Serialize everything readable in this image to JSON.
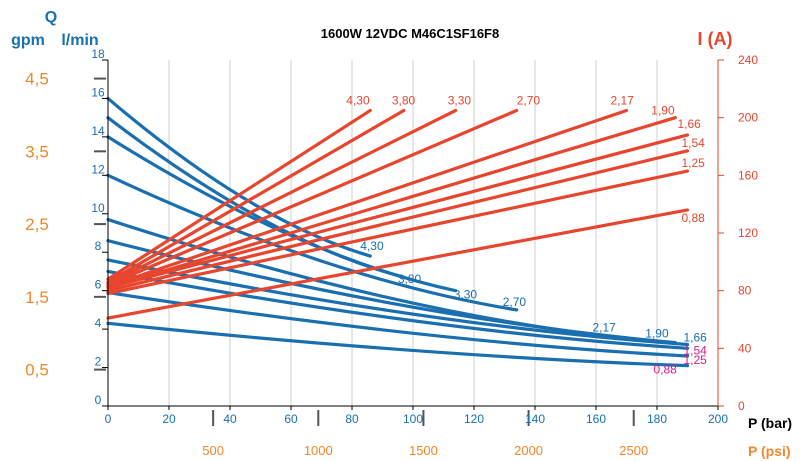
{
  "chart_data": {
    "type": "line",
    "title": "1600W 12VDC M46C1SF16F8",
    "colors": {
      "flow": "#1a6fb0",
      "current": "#e8452e",
      "psi": "#f0872b",
      "grid": "#cfcfcf",
      "axis": "#000000",
      "magenta": "#d81b8c"
    },
    "x_axis": {
      "label": "P (bar)",
      "range": [
        0,
        200
      ],
      "ticks": [
        "0",
        "20",
        "40",
        "60",
        "80",
        "100",
        "120",
        "140",
        "160",
        "180",
        "200"
      ]
    },
    "x2_axis": {
      "label": "P (psi)",
      "ticks": [
        "500",
        "1000",
        "1500",
        "2000",
        "2500"
      ],
      "values": [
        500,
        1000,
        1500,
        2000,
        2500
      ]
    },
    "y_lmin_axis": {
      "label": "l/min",
      "range": [
        0,
        18
      ],
      "ticks": [
        "0",
        "2",
        "4",
        "6",
        "8",
        "10",
        "12",
        "14",
        "16",
        "18"
      ]
    },
    "y_gpm_axis": {
      "label": "gpm",
      "q_label": "Q",
      "ticks": [
        "0,5",
        "1,5",
        "2,5",
        "3,5",
        "4,5"
      ],
      "values": [
        0.5,
        1.5,
        2.5,
        3.5,
        4.5
      ]
    },
    "y_current_axis": {
      "label": "I (A)",
      "range": [
        0,
        240
      ],
      "ticks": [
        "0",
        "40",
        "80",
        "120",
        "160",
        "200",
        "240"
      ]
    },
    "flow_series": [
      {
        "name": "4,30",
        "name_color": "#1a6fb0",
        "x": [
          0,
          86
        ],
        "y": [
          16.0,
          7.8
        ]
      },
      {
        "name": "3,80",
        "name_color": "#1a6fb0",
        "x": [
          0,
          97
        ],
        "y": [
          15.0,
          6.7
        ]
      },
      {
        "name": "3,30",
        "name_color": "#1a6fb0",
        "x": [
          0,
          114
        ],
        "y": [
          14.0,
          6.0
        ]
      },
      {
        "name": "2,70",
        "name_color": "#1a6fb0",
        "x": [
          0,
          134
        ],
        "y": [
          12.0,
          5.0
        ]
      },
      {
        "name": "2,17",
        "name_color": "#1a6fb0",
        "x": [
          0,
          170
        ],
        "y": [
          9.7,
          3.5
        ]
      },
      {
        "name": "1,90",
        "name_color": "#1a6fb0",
        "x": [
          0,
          186
        ],
        "y": [
          8.6,
          3.3
        ]
      },
      {
        "name": "1,66",
        "name_color": "#1a6fb0",
        "x": [
          0,
          190
        ],
        "y": [
          7.6,
          3.2
        ]
      },
      {
        "name": "1,54",
        "name_color": "#d81b8c",
        "x": [
          0,
          190
        ],
        "y": [
          7.0,
          3.0
        ]
      },
      {
        "name": "1,25",
        "name_color": "#d81b8c",
        "x": [
          0,
          190
        ],
        "y": [
          5.9,
          2.6
        ]
      },
      {
        "name": "0,88",
        "name_color": "#d81b8c",
        "x": [
          0,
          190
        ],
        "y": [
          4.3,
          2.1
        ]
      }
    ],
    "current_series": [
      {
        "name": "4,30",
        "x": [
          0,
          86
        ],
        "y": [
          88,
          205
        ]
      },
      {
        "name": "3,80",
        "x": [
          0,
          97
        ],
        "y": [
          86,
          205
        ]
      },
      {
        "name": "3,30",
        "x": [
          0,
          114
        ],
        "y": [
          85,
          205
        ]
      },
      {
        "name": "2,70",
        "x": [
          0,
          134
        ],
        "y": [
          84,
          205
        ]
      },
      {
        "name": "2,17",
        "x": [
          0,
          170
        ],
        "y": [
          83,
          205
        ]
      },
      {
        "name": "1,90",
        "x": [
          0,
          186
        ],
        "y": [
          82,
          200
        ]
      },
      {
        "name": "1,66",
        "x": [
          0,
          190
        ],
        "y": [
          82,
          188
        ]
      },
      {
        "name": "1,54",
        "x": [
          0,
          190
        ],
        "y": [
          80,
          177
        ]
      },
      {
        "name": "1,25",
        "x": [
          0,
          190
        ],
        "y": [
          78,
          163
        ]
      },
      {
        "name": "0,88",
        "x": [
          0,
          190
        ],
        "y": [
          61,
          136
        ]
      }
    ]
  }
}
